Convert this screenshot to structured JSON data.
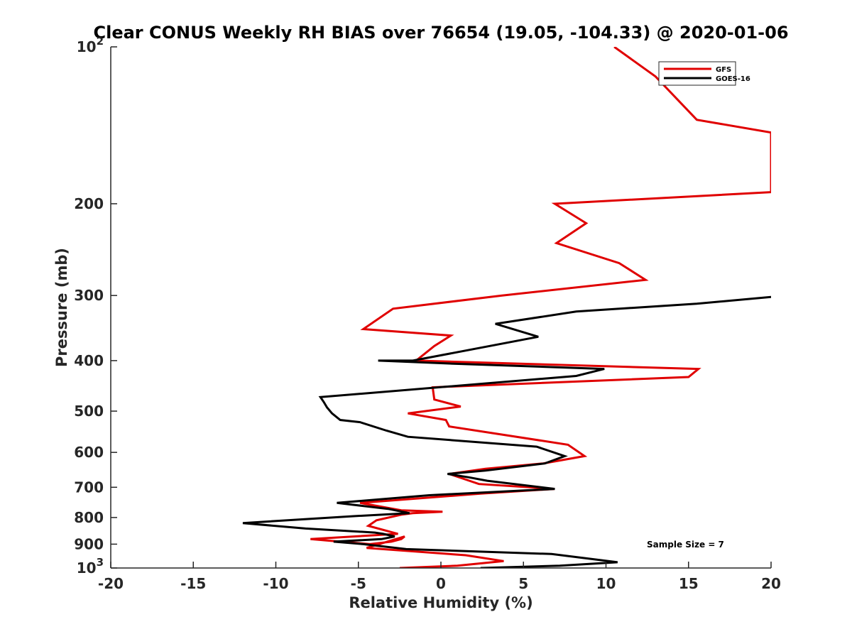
{
  "chart_data": {
    "type": "line",
    "title": "Clear CONUS Weekly RH BIAS over 76654 (19.05, -104.33) @ 2020-01-06",
    "xlabel": "Relative Humidity (%)",
    "ylabel": "Pressure (mb)",
    "xlim": [
      -20,
      20
    ],
    "ylim": [
      100,
      1000
    ],
    "yscale": "log",
    "y_reversed": true,
    "grid": false,
    "legend_position": "top-right",
    "x_ticks": [
      -20,
      -15,
      -10,
      -5,
      0,
      5,
      10,
      15,
      20
    ],
    "x_tick_labels": [
      "-20",
      "-15",
      "-10",
      "-5",
      "0",
      "5",
      "10",
      "15",
      "20"
    ],
    "y_ticks": [
      100,
      200,
      300,
      400,
      500,
      600,
      700,
      800,
      900,
      1000
    ],
    "y_tick_labels": [
      {
        "base": "10",
        "exp": "2"
      },
      {
        "base": "200",
        "exp": ""
      },
      {
        "base": "300",
        "exp": ""
      },
      {
        "base": "400",
        "exp": ""
      },
      {
        "base": "500",
        "exp": ""
      },
      {
        "base": "600",
        "exp": ""
      },
      {
        "base": "700",
        "exp": ""
      },
      {
        "base": "800",
        "exp": ""
      },
      {
        "base": "900",
        "exp": ""
      },
      {
        "base": "10",
        "exp": "3"
      }
    ],
    "annotation": "Sample Size = 7",
    "series": [
      {
        "name": "GFS",
        "color": "#e00000",
        "x": [
          10.5,
          13,
          15.5,
          20,
          20,
          6.9,
          8.8,
          7.0,
          10.8,
          12.4,
          3.7,
          -2.9,
          -4.7,
          0.6,
          -0.4,
          -1.5,
          15.6,
          15.0,
          -0.5,
          -0.4,
          1.2,
          -2.0,
          0.3,
          0.5,
          7.7,
          8.7,
          6.2,
          2.7,
          0.5,
          2.3,
          6.9,
          2.4,
          -4.9,
          -2.4,
          0.1,
          -1.7,
          -2.4,
          -3.9,
          -4.4,
          -2.6,
          -7.9,
          -4.3,
          -3.0,
          -2.4,
          -2.2,
          -4.5,
          1.5,
          3.8,
          1.0,
          -2.5
        ],
        "y": [
          100,
          114,
          138,
          146,
          190,
          200,
          218,
          238,
          260,
          280,
          300,
          318,
          348,
          358,
          375,
          400,
          415,
          430,
          450,
          475,
          490,
          505,
          520,
          535,
          580,
          610,
          630,
          645,
          660,
          690,
          705,
          720,
          750,
          775,
          780,
          785,
          790,
          810,
          830,
          860,
          880,
          900,
          890,
          880,
          870,
          915,
          945,
          970,
          990,
          1000
        ]
      },
      {
        "name": "GOES-16",
        "color": "#000000",
        "x": [
          20,
          15.5,
          8.2,
          3.3,
          5.9,
          -1.7,
          -3.8,
          0.4,
          9.9,
          8.2,
          -7.3,
          -7.1,
          -6.9,
          -6.6,
          -6.1,
          -4.9,
          -3.3,
          -2.0,
          5.8,
          7.5,
          6.3,
          2.7,
          0.4,
          1.7,
          2.8,
          6.9,
          -0.7,
          -6.3,
          -3.2,
          -1.9,
          -5.2,
          -12.0,
          -8.2,
          -4.0,
          -3.5,
          -2.8,
          -3.6,
          -6.5,
          -4.7,
          -2.1,
          6.7,
          10.7,
          7.2,
          2.4
        ],
        "y": [
          302,
          311,
          322,
          340,
          360,
          400,
          400,
          405,
          415,
          428,
          470,
          480,
          492,
          505,
          520,
          525,
          545,
          560,
          585,
          610,
          630,
          650,
          660,
          670,
          680,
          705,
          725,
          750,
          770,
          785,
          795,
          820,
          840,
          855,
          860,
          870,
          880,
          890,
          900,
          920,
          940,
          975,
          990,
          1000
        ]
      }
    ]
  }
}
